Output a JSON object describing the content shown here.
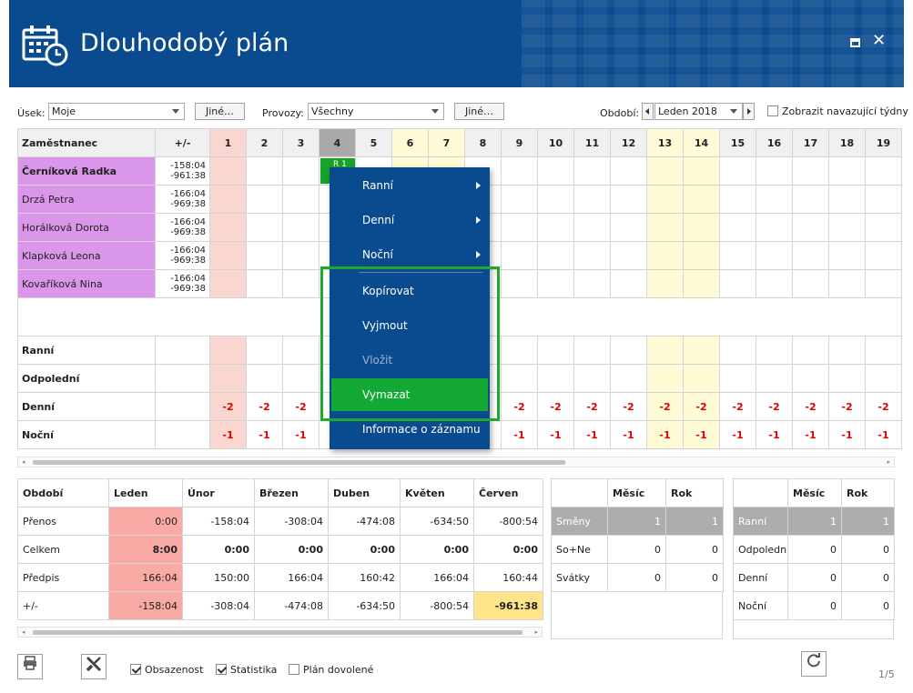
{
  "window": {
    "title": "Dlouhodobý plán",
    "maximize_icon": "maximize-icon",
    "close_glyph": "✕"
  },
  "filters": {
    "usek_label": "Úsek:",
    "usek_value": "Moje",
    "jine_label": "Jiné…",
    "provozy_label": "Provozy:",
    "provozy_value": "Všechny",
    "jine2_label": "Jiné…",
    "obdobi_label": "Období:",
    "obdobi_value": "Leden 2018",
    "show_weeks_label": "Zobrazit navazující týdny"
  },
  "grid": {
    "header_employee": "Zaměstnanec",
    "header_pm": "+/-",
    "days": [
      "1",
      "2",
      "3",
      "4",
      "5",
      "6",
      "7",
      "8",
      "9",
      "10",
      "11",
      "12",
      "13",
      "14",
      "15",
      "16",
      "17",
      "18",
      "19"
    ],
    "employees": [
      {
        "name": "Černíková Radka",
        "pm1": "-158:04",
        "pm2": "-961:38"
      },
      {
        "name": "Drzá Petra",
        "pm1": "-166:04",
        "pm2": "-969:38"
      },
      {
        "name": "Horálková Dorota",
        "pm1": "-166:04",
        "pm2": "-969:38"
      },
      {
        "name": "Klapková Leona",
        "pm1": "-166:04",
        "pm2": "-969:38"
      },
      {
        "name": "Kovaříková Nina",
        "pm1": "-166:04",
        "pm2": "-969:38"
      }
    ],
    "shift_tag": "R 1",
    "shift_rows": [
      {
        "label": "Ranní",
        "values": [
          "",
          "",
          "",
          "",
          "",
          "",
          "",
          "",
          "",
          "",
          "",
          "",
          "",
          "",
          "",
          "",
          "",
          "",
          ""
        ]
      },
      {
        "label": "Odpolední",
        "values": [
          "",
          "",
          "",
          "",
          "",
          "",
          "",
          "",
          "",
          "",
          "",
          "",
          "",
          "",
          "",
          "",
          "",
          "",
          ""
        ]
      },
      {
        "label": "Denní",
        "values": [
          "-2",
          "-2",
          "-2",
          "",
          "",
          "",
          "",
          "",
          "-2",
          "-2",
          "-2",
          "-2",
          "-2",
          "-2",
          "-2",
          "-2",
          "-2",
          "-2",
          "-2"
        ]
      },
      {
        "label": "Noční",
        "values": [
          "-1",
          "-1",
          "-1",
          "",
          "",
          "",
          "",
          "",
          "-1",
          "-1",
          "-1",
          "-1",
          "-1",
          "-1",
          "-1",
          "-1",
          "-1",
          "-1",
          "-1"
        ]
      }
    ]
  },
  "context_menu": {
    "items": [
      {
        "label": "Ranní",
        "submenu": true
      },
      {
        "label": "Denní",
        "submenu": true
      },
      {
        "label": "Noční",
        "submenu": true
      },
      {
        "label": "Kopírovat",
        "submenu": false
      },
      {
        "label": "Vyjmout",
        "submenu": false
      },
      {
        "label": "Vložit",
        "submenu": false,
        "disabled": true
      },
      {
        "label": "Vymazat",
        "submenu": false,
        "highlighted": true
      },
      {
        "label": "Informace o záznamu",
        "submenu": false
      }
    ]
  },
  "summary": {
    "headers": [
      "Období",
      "Leden",
      "Únor",
      "Březen",
      "Duben",
      "Květen",
      "Červen"
    ],
    "rows": [
      {
        "label": "Přenos",
        "values": [
          "0:00",
          "-158:04",
          "-308:04",
          "-474:08",
          "-634:50",
          "-800:54"
        ]
      },
      {
        "label": "Celkem",
        "values": [
          "8:00",
          "0:00",
          "0:00",
          "0:00",
          "0:00",
          "0:00"
        ]
      },
      {
        "label": "Předpis",
        "values": [
          "166:04",
          "150:00",
          "166:04",
          "160:42",
          "166:04",
          "160:44"
        ]
      },
      {
        "label": "+/-",
        "values": [
          "-158:04",
          "-308:04",
          "-474:08",
          "-634:50",
          "-800:54",
          "-961:38"
        ]
      }
    ]
  },
  "stats1": {
    "headers": [
      "",
      "Měsíc",
      "Rok"
    ],
    "rows": [
      {
        "label": "Směny",
        "m": "1",
        "r": "1"
      },
      {
        "label": "So+Ne",
        "m": "0",
        "r": "0"
      },
      {
        "label": "Svátky",
        "m": "0",
        "r": "0"
      }
    ]
  },
  "stats2": {
    "headers": [
      "",
      "Měsíc",
      "Rok"
    ],
    "rows": [
      {
        "label": "Ranní",
        "m": "1",
        "r": "1"
      },
      {
        "label": "Odpolední",
        "m": "0",
        "r": "0"
      },
      {
        "label": "Denní",
        "m": "0",
        "r": "0"
      },
      {
        "label": "Noční",
        "m": "0",
        "r": "0"
      }
    ]
  },
  "footer": {
    "obsazenost_label": "Obsazenost",
    "statistika_label": "Statistika",
    "plan_dovolene_label": "Plán dovolené",
    "page": "1/5"
  },
  "colors": {
    "header_bg": "#0a4b8f",
    "employee_bg": "#d996ea",
    "accent_green": "#14a834",
    "negative": "#e00000"
  }
}
